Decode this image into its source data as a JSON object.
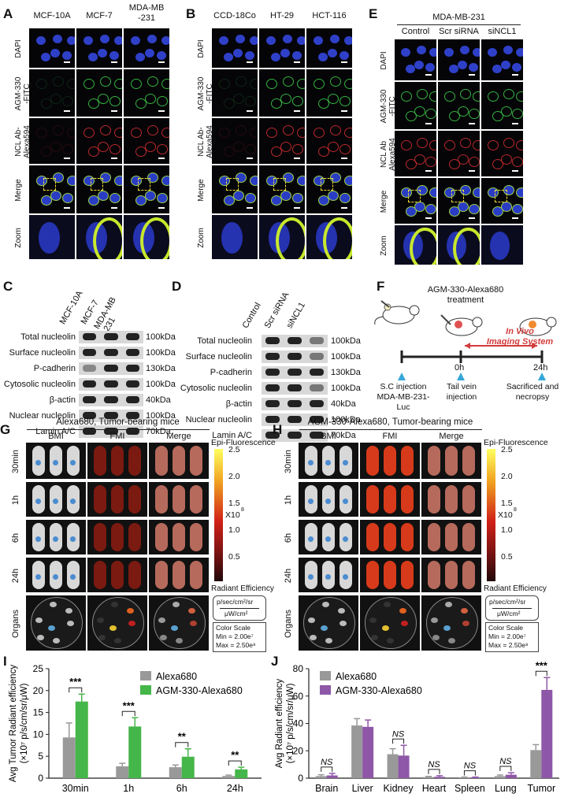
{
  "panels": {
    "A": {
      "letter": "A",
      "cols": [
        "MCF-10A",
        "MCF-7",
        "MDA-MB\n-231"
      ],
      "rows": [
        "DAPI",
        "AGM-330\n-FITC",
        "NCL Ab-\nAlexa594",
        "Merge",
        "Zoom"
      ]
    },
    "B": {
      "letter": "B",
      "cols": [
        "CCD-18Co",
        "HT-29",
        "HCT-116"
      ],
      "rows": [
        "DAPI",
        "AGM-330\n-FITC",
        "NCL Ab-\nAlexa594",
        "Merge",
        "Zoom"
      ]
    },
    "E": {
      "letter": "E",
      "title": "MDA-MB-231",
      "cols": [
        "Control",
        "Scr siRNA",
        "siNCL1"
      ],
      "rows": [
        "DAPI",
        "AGM-330\n-FITC",
        "NCL Ab\nAlexa594",
        "Merge",
        "Zoom"
      ]
    },
    "C": {
      "letter": "C",
      "cols": [
        "MCF-10A",
        "MCF-7",
        "MDA-MB\n-231"
      ],
      "rows": [
        {
          "name": "Total nucleolin",
          "kda": "100kDa"
        },
        {
          "name": "Surface nucleolin",
          "kda": "100kDa"
        },
        {
          "name": "P-cadherin",
          "kda": "130kDa"
        },
        {
          "name": "Cytosolic nucleolin",
          "kda": "100kDa"
        },
        {
          "name": "β-actin",
          "kda": "40kDa"
        },
        {
          "name": "Nuclear nucleolin",
          "kda": "100kDa"
        },
        {
          "name": "Lamin A/C",
          "kda": "70kDa"
        }
      ]
    },
    "D": {
      "letter": "D",
      "cols": [
        "Control",
        "Scr siRNA",
        "siNCL1"
      ],
      "rows": [
        {
          "name": "Total nucleolin",
          "kda": "100kDa"
        },
        {
          "name": "Surface nucleolin",
          "kda": "100kDa"
        },
        {
          "name": "P-cadherin",
          "kda": "130kDa"
        },
        {
          "name": "Cytosolic nucleolin",
          "kda": "100kDa"
        },
        {
          "name": "β-actin",
          "kda": "40kDa"
        },
        {
          "name": "Nuclear nucleolin",
          "kda": "100kDa"
        },
        {
          "name": "Lamin A/C",
          "kda": "70kDa"
        }
      ]
    },
    "F": {
      "letter": "F",
      "treatment": "AGM-330-Alexa680\ntreatment",
      "ivis": "In Vivo\nImaging System",
      "t0": "0h",
      "t24": "24h",
      "step1": "S.C injection\nMDA-MB-231-Luc",
      "step2": "Tail vein\ninjection",
      "step3": "Sacrificed and\nnecropsy"
    },
    "G": {
      "letter": "G",
      "title": "Alexa680, Tumor-bearing mice",
      "cols": [
        "BMI",
        "FMI",
        "Merge"
      ],
      "rows": [
        "30min",
        "1h",
        "6h",
        "24h",
        "Organs"
      ]
    },
    "H": {
      "letter": "H",
      "title": "AGM-330-Alexa680, Tumor-bearing mice",
      "cols": [
        "BMI",
        "FMI",
        "Merge"
      ],
      "rows": [
        "30min",
        "1h",
        "6h",
        "24h",
        "Organs"
      ]
    },
    "scale": {
      "title": "Epi-Fluorescence",
      "ticks": [
        "2.5",
        "2.0",
        "1.5",
        "1.0",
        "0.5"
      ],
      "mult": "X10",
      "mult_exp": "8",
      "re": "Radiant Efficiency",
      "re_unit1": "p/sec/cm²/sr",
      "re_unit2": "μW/cm²",
      "cs1": "Color Scale",
      "cs2": "Min = 2.00e⁷",
      "cs3": "Max = 2.50e⁸"
    },
    "organ_labels": [
      "Brain",
      "Liver",
      "Lung",
      "Kidney",
      "Tumor",
      "Spleen",
      "Heart"
    ],
    "I": {
      "letter": "I"
    },
    "J": {
      "letter": "J"
    }
  },
  "chart_data": [
    {
      "type": "bar",
      "categories": [
        "30min",
        "1h",
        "6h",
        "24h"
      ],
      "series": [
        {
          "name": "Alexa680",
          "values": [
            9.3,
            2.7,
            2.5,
            0.5
          ],
          "errors": [
            3.3,
            0.7,
            0.5,
            0.2
          ],
          "color": "#999999"
        },
        {
          "name": "AGM-330-Alexa680",
          "values": [
            17.5,
            11.8,
            4.9,
            2.0
          ],
          "errors": [
            1.7,
            2.0,
            1.8,
            0.5
          ],
          "color": "#45b649"
        }
      ],
      "significance": [
        "***",
        "***",
        "**",
        "**"
      ],
      "ylabel": "Avg Tumor Radiant efficiency\n(×10⁷ p/s/cm/sr/μW)",
      "ylim": [
        0,
        25
      ],
      "yticks": [
        0,
        5,
        10,
        15,
        20,
        25
      ],
      "legend_position": "top-right"
    },
    {
      "type": "bar",
      "categories": [
        "Brain",
        "Liver",
        "Kidney",
        "Heart",
        "Spleen",
        "Lung",
        "Tumor"
      ],
      "series": [
        {
          "name": "Alexa680",
          "values": [
            1.5,
            38.5,
            17.5,
            0.8,
            0.5,
            1.5,
            20.5
          ],
          "errors": [
            1.0,
            5.0,
            4.0,
            0.5,
            0.3,
            0.8,
            4.0
          ],
          "color": "#999999"
        },
        {
          "name": "AGM-330-Alexa680",
          "values": [
            2.0,
            37.5,
            16.5,
            1.0,
            0.5,
            2.5,
            64.5
          ],
          "errors": [
            1.5,
            5.0,
            7.5,
            0.8,
            0.3,
            1.5,
            9.0
          ],
          "color": "#8e57a7"
        }
      ],
      "significance": [
        "NS",
        "",
        "NS",
        "NS",
        "NS",
        "NS",
        "***"
      ],
      "ylabel": "Avg Radiant efficiency\n(×10⁷ p/s/cm/sr/μW)",
      "ylim": [
        0,
        80
      ],
      "yticks": [
        0,
        20,
        40,
        60,
        80
      ],
      "legend_position": "top-left"
    }
  ]
}
